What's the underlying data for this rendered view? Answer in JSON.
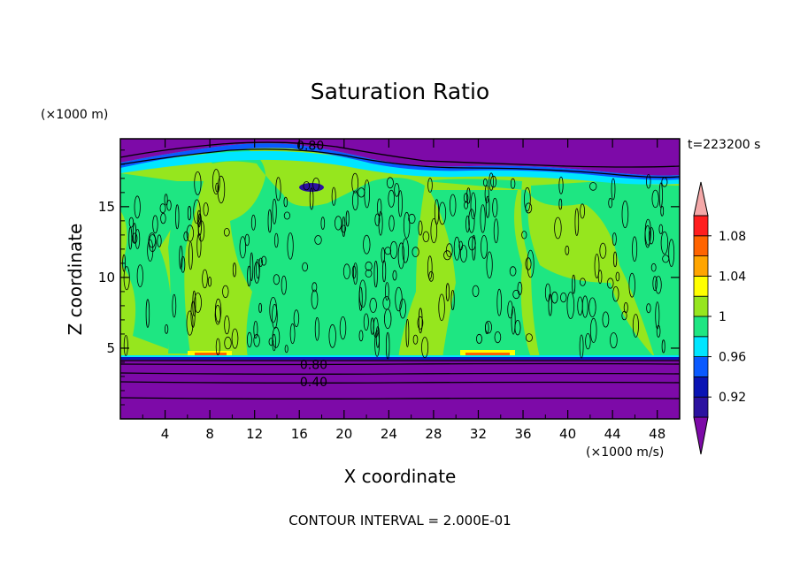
{
  "chart_data": {
    "type": "heatmap",
    "title": "Saturation Ratio",
    "xlabel": "X coordinate",
    "ylabel": "Z coordinate",
    "x_unit": "(×1000 m/s)",
    "y_unit": "(×1000 m)",
    "time_label": "t=223200 s",
    "footer": "CONTOUR INTERVAL = 2.000E-01",
    "xlim": [
      0,
      50
    ],
    "ylim": [
      0,
      19.8
    ],
    "x_ticks": [
      4,
      8,
      12,
      16,
      20,
      24,
      28,
      32,
      36,
      40,
      44,
      48
    ],
    "y_ticks": [
      5,
      10,
      15
    ],
    "contour_labels": [
      {
        "text": "0.80",
        "x": 16.7,
        "z": 19.4
      },
      {
        "text": "0.80",
        "x": 17.0,
        "z": 3.9
      },
      {
        "text": "0.40",
        "x": 17.0,
        "z": 2.7
      }
    ],
    "colorbar": {
      "levels": [
        0.92,
        0.94,
        0.96,
        0.98,
        1.0,
        1.02,
        1.04,
        1.06,
        1.08,
        1.1
      ],
      "labels": [
        "0.92",
        "0.96",
        "1",
        "1.04",
        "1.08"
      ],
      "colors": [
        "#7d0aa8",
        "#2c12a0",
        "#0a14b4",
        "#0a5aff",
        "#00e6ff",
        "#1ee682",
        "#96e61e",
        "#ffff00",
        "#ffa500",
        "#ff6400",
        "#ff1e1e",
        "#f4a8a8"
      ]
    },
    "regions": {
      "lower_dry_layer": {
        "z_range": [
          0,
          4.5
        ],
        "value_band": "<0.92"
      },
      "upper_dry_layer": {
        "z_range": [
          17.5,
          19.8
        ],
        "value_band": "<0.92"
      },
      "cloud_layer": {
        "z_range": [
          4.5,
          17.5
        ],
        "value_band": "0.98-1.02"
      },
      "supersaturated_patches": [
        {
          "x_range": [
            6,
            10
          ],
          "z": 4.7,
          "value_band": "1.02-1.06"
        },
        {
          "x_range": [
            30,
            35
          ],
          "z": 4.7,
          "value_band": "1.02-1.06"
        }
      ]
    }
  }
}
